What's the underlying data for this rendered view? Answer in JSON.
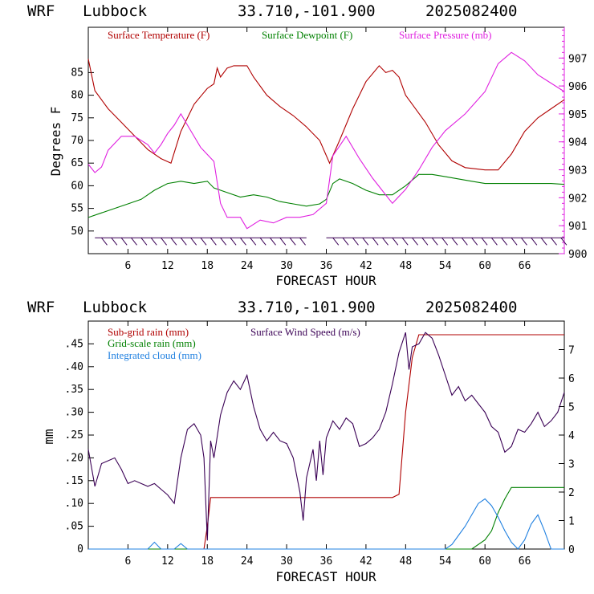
{
  "panels": [
    {
      "header": {
        "model": "WRF",
        "site": "Lubbock",
        "coords": "33.710,-101.900",
        "init": "2025082400"
      },
      "ylabel_left": "Degrees F",
      "xlabel": "FORECAST HOUR"
    },
    {
      "header": {
        "model": "WRF",
        "site": "Lubbock",
        "coords": "33.710,-101.900",
        "init": "2025082400"
      },
      "ylabel_left": "mm",
      "xlabel": "FORECAST HOUR"
    }
  ],
  "chart_data": [
    {
      "type": "line",
      "xlabel": "FORECAST HOUR",
      "ylabel": "Degrees F",
      "xlim": [
        0,
        72
      ],
      "ylim": [
        45,
        95
      ],
      "y2lim": [
        900,
        908.1
      ],
      "xticks": [
        6,
        12,
        18,
        24,
        30,
        36,
        42,
        48,
        54,
        60,
        66
      ],
      "yticks": [
        50,
        55,
        60,
        65,
        70,
        75,
        80,
        85
      ],
      "y2ticks": [
        900,
        901,
        902,
        903,
        904,
        905,
        906,
        907
      ],
      "grid": false,
      "legend": "top",
      "series": [
        {
          "name": "Surface Temperature (F)",
          "color": "#b00000",
          "axis": "left",
          "points": [
            [
              0,
              88
            ],
            [
              1,
              81
            ],
            [
              3,
              77
            ],
            [
              5,
              74
            ],
            [
              7,
              71
            ],
            [
              9,
              68
            ],
            [
              11,
              66
            ],
            [
              12.5,
              65
            ],
            [
              14,
              72
            ],
            [
              16,
              78
            ],
            [
              18,
              81.5
            ],
            [
              19,
              82.5
            ],
            [
              19.5,
              86
            ],
            [
              20,
              84
            ],
            [
              21,
              86
            ],
            [
              22,
              86.5
            ],
            [
              24,
              86.5
            ],
            [
              25,
              84
            ],
            [
              27,
              80
            ],
            [
              29,
              77.5
            ],
            [
              31,
              75.5
            ],
            [
              33,
              73
            ],
            [
              35,
              70
            ],
            [
              36.5,
              65
            ],
            [
              38,
              70
            ],
            [
              40,
              77
            ],
            [
              42,
              83
            ],
            [
              44,
              86.5
            ],
            [
              45,
              85
            ],
            [
              46,
              85.5
            ],
            [
              47,
              84
            ],
            [
              48,
              80
            ],
            [
              49,
              78
            ],
            [
              51,
              74
            ],
            [
              53,
              69
            ],
            [
              55,
              65.5
            ],
            [
              57,
              64
            ],
            [
              60,
              63.5
            ],
            [
              62,
              63.5
            ],
            [
              64,
              67
            ],
            [
              66,
              72
            ],
            [
              68,
              75
            ],
            [
              70,
              77
            ],
            [
              72,
              79
            ]
          ]
        },
        {
          "name": "Surface Dewpoint (F)",
          "color": "#008000",
          "axis": "left",
          "points": [
            [
              0,
              53
            ],
            [
              2,
              54
            ],
            [
              4,
              55
            ],
            [
              6,
              56
            ],
            [
              8,
              57
            ],
            [
              10,
              59
            ],
            [
              12,
              60.5
            ],
            [
              14,
              61
            ],
            [
              16,
              60.5
            ],
            [
              18,
              61
            ],
            [
              19,
              59.5
            ],
            [
              21,
              58.5
            ],
            [
              23,
              57.5
            ],
            [
              25,
              58
            ],
            [
              27,
              57.5
            ],
            [
              29,
              56.5
            ],
            [
              31,
              56
            ],
            [
              33,
              55.5
            ],
            [
              35,
              56
            ],
            [
              36,
              57
            ],
            [
              37,
              60.5
            ],
            [
              38,
              61.5
            ],
            [
              40,
              60.5
            ],
            [
              42,
              59
            ],
            [
              44,
              58
            ],
            [
              46,
              58
            ],
            [
              48,
              60
            ],
            [
              50,
              62.5
            ],
            [
              52,
              62.5
            ],
            [
              54,
              62
            ],
            [
              56,
              61.5
            ],
            [
              58,
              61
            ],
            [
              60,
              60.5
            ],
            [
              62,
              60.5
            ],
            [
              64,
              60.5
            ],
            [
              66,
              60.5
            ],
            [
              68,
              60.5
            ],
            [
              70,
              60.5
            ],
            [
              72,
              60.3
            ]
          ]
        },
        {
          "name": "Surface Pressure (mb)",
          "color": "#e020e0",
          "axis": "right",
          "points": [
            [
              0,
              903.2
            ],
            [
              1,
              902.9
            ],
            [
              2,
              903.1
            ],
            [
              3,
              903.7
            ],
            [
              5,
              904.2
            ],
            [
              7,
              904.2
            ],
            [
              9,
              903.9
            ],
            [
              10,
              903.6
            ],
            [
              11,
              903.9
            ],
            [
              12,
              904.3
            ],
            [
              13,
              904.6
            ],
            [
              14,
              905.0
            ],
            [
              15,
              904.6
            ],
            [
              17,
              903.8
            ],
            [
              19,
              903.3
            ],
            [
              20,
              901.8
            ],
            [
              21,
              901.3
            ],
            [
              23,
              901.3
            ],
            [
              24,
              900.9
            ],
            [
              26,
              901.2
            ],
            [
              28,
              901.1
            ],
            [
              30,
              901.3
            ],
            [
              32,
              901.3
            ],
            [
              34,
              901.4
            ],
            [
              36,
              901.8
            ],
            [
              37,
              903.5
            ],
            [
              39,
              904.2
            ],
            [
              41,
              903.4
            ],
            [
              43,
              902.7
            ],
            [
              45,
              902.1
            ],
            [
              46,
              901.8
            ],
            [
              48,
              902.3
            ],
            [
              50,
              903.0
            ],
            [
              52,
              903.8
            ],
            [
              54,
              904.4
            ],
            [
              57,
              905.0
            ],
            [
              60,
              905.8
            ],
            [
              62,
              906.8
            ],
            [
              64,
              907.2
            ],
            [
              66,
              906.9
            ],
            [
              68,
              906.4
            ],
            [
              70,
              906.1
            ],
            [
              72,
              905.8
            ]
          ]
        }
      ],
      "wind_barbs": {
        "rows_at_degF": [
          48.5,
          48.5
        ],
        "segments_hours": [
          [
            1,
            33
          ],
          [
            36,
            72
          ]
        ]
      }
    },
    {
      "type": "line",
      "xlabel": "FORECAST HOUR",
      "ylabel": "mm",
      "xlim": [
        0,
        72
      ],
      "ylim": [
        0,
        0.5
      ],
      "y2lim": [
        0,
        8
      ],
      "xticks": [
        6,
        12,
        18,
        24,
        30,
        36,
        42,
        48,
        54,
        60,
        66
      ],
      "yticks": [
        0,
        0.05,
        0.1,
        0.15,
        0.2,
        0.25,
        0.3,
        0.35,
        0.4,
        0.45
      ],
      "ytick_labels": [
        "0",
        ".05",
        ".10",
        ".15",
        ".20",
        ".25",
        ".30",
        ".35",
        ".40",
        ".45"
      ],
      "y2ticks": [
        0,
        1,
        2,
        3,
        4,
        5,
        6,
        7
      ],
      "grid": false,
      "legend": "top-left",
      "series": [
        {
          "name": "Sub-grid rain (mm)",
          "color": "#b00000",
          "axis": "left",
          "points": [
            [
              0,
              0
            ],
            [
              17.5,
              0
            ],
            [
              18,
              0.05
            ],
            [
              18.5,
              0.113
            ],
            [
              46,
              0.113
            ],
            [
              47,
              0.12
            ],
            [
              48,
              0.3
            ],
            [
              49,
              0.42
            ],
            [
              50,
              0.47
            ],
            [
              72,
              0.47
            ]
          ]
        },
        {
          "name": "Grid-scale rain (mm)",
          "color": "#008000",
          "axis": "left",
          "points": [
            [
              0,
              0
            ],
            [
              58,
              0
            ],
            [
              60,
              0.02
            ],
            [
              61,
              0.04
            ],
            [
              62,
              0.08
            ],
            [
              63,
              0.11
            ],
            [
              64,
              0.135
            ],
            [
              72,
              0.135
            ]
          ]
        },
        {
          "name": "Integrated cloud (mm)",
          "color": "#2080e0",
          "axis": "left",
          "points": [
            [
              0,
              0
            ],
            [
              9,
              0
            ],
            [
              10,
              0.015
            ],
            [
              11,
              0
            ],
            [
              13,
              0
            ],
            [
              14,
              0.012
            ],
            [
              15,
              0
            ],
            [
              54,
              0
            ],
            [
              55,
              0.01
            ],
            [
              56,
              0.03
            ],
            [
              57,
              0.05
            ],
            [
              58,
              0.075
            ],
            [
              59,
              0.1
            ],
            [
              60,
              0.11
            ],
            [
              61,
              0.095
            ],
            [
              62,
              0.07
            ],
            [
              63,
              0.04
            ],
            [
              64,
              0.015
            ],
            [
              65,
              0
            ],
            [
              66,
              0.02
            ],
            [
              67,
              0.055
            ],
            [
              68,
              0.075
            ],
            [
              69,
              0.04
            ],
            [
              70,
              0
            ],
            [
              72,
              0
            ]
          ]
        },
        {
          "name": "Surface Wind Speed (m/s)",
          "color": "#3a0055",
          "axis": "right",
          "points": [
            [
              0,
              3.5
            ],
            [
              1,
              2.2
            ],
            [
              2,
              3
            ],
            [
              3,
              3.1
            ],
            [
              4,
              3.2
            ],
            [
              5,
              2.8
            ],
            [
              6,
              2.3
            ],
            [
              7,
              2.4
            ],
            [
              8,
              2.3
            ],
            [
              9,
              2.2
            ],
            [
              10,
              2.3
            ],
            [
              11,
              2.1
            ],
            [
              12,
              1.9
            ],
            [
              13,
              1.6
            ],
            [
              14,
              3.2
            ],
            [
              15,
              4.2
            ],
            [
              16,
              4.4
            ],
            [
              17,
              4.0
            ],
            [
              17.5,
              3.2
            ],
            [
              18,
              0.3
            ],
            [
              18.5,
              3.8
            ],
            [
              19,
              3.2
            ],
            [
              20,
              4.7
            ],
            [
              21,
              5.5
            ],
            [
              22,
              5.9
            ],
            [
              23,
              5.6
            ],
            [
              24,
              6.1
            ],
            [
              25,
              5.0
            ],
            [
              26,
              4.2
            ],
            [
              27,
              3.8
            ],
            [
              28,
              4.1
            ],
            [
              29,
              3.8
            ],
            [
              30,
              3.7
            ],
            [
              31,
              3.2
            ],
            [
              32,
              2.0
            ],
            [
              32.5,
              1.0
            ],
            [
              33,
              2.5
            ],
            [
              34,
              3.5
            ],
            [
              34.5,
              2.4
            ],
            [
              35,
              3.8
            ],
            [
              35.5,
              2.6
            ],
            [
              36,
              3.9
            ],
            [
              37,
              4.5
            ],
            [
              38,
              4.2
            ],
            [
              39,
              4.6
            ],
            [
              40,
              4.4
            ],
            [
              41,
              3.6
            ],
            [
              42,
              3.7
            ],
            [
              43,
              3.9
            ],
            [
              44,
              4.2
            ],
            [
              45,
              4.8
            ],
            [
              46,
              5.8
            ],
            [
              47,
              6.9
            ],
            [
              48,
              7.6
            ],
            [
              48.5,
              6.3
            ],
            [
              49,
              7.1
            ],
            [
              50,
              7.2
            ],
            [
              51,
              7.6
            ],
            [
              52,
              7.4
            ],
            [
              53,
              6.8
            ],
            [
              54,
              6.1
            ],
            [
              55,
              5.4
            ],
            [
              56,
              5.7
            ],
            [
              57,
              5.2
            ],
            [
              58,
              5.4
            ],
            [
              59,
              5.1
            ],
            [
              60,
              4.8
            ],
            [
              61,
              4.3
            ],
            [
              62,
              4.1
            ],
            [
              63,
              3.4
            ],
            [
              64,
              3.6
            ],
            [
              65,
              4.2
            ],
            [
              66,
              4.1
            ],
            [
              67,
              4.4
            ],
            [
              68,
              4.8
            ],
            [
              69,
              4.3
            ],
            [
              70,
              4.5
            ],
            [
              71,
              4.8
            ],
            [
              72,
              5.5
            ]
          ]
        }
      ]
    }
  ]
}
